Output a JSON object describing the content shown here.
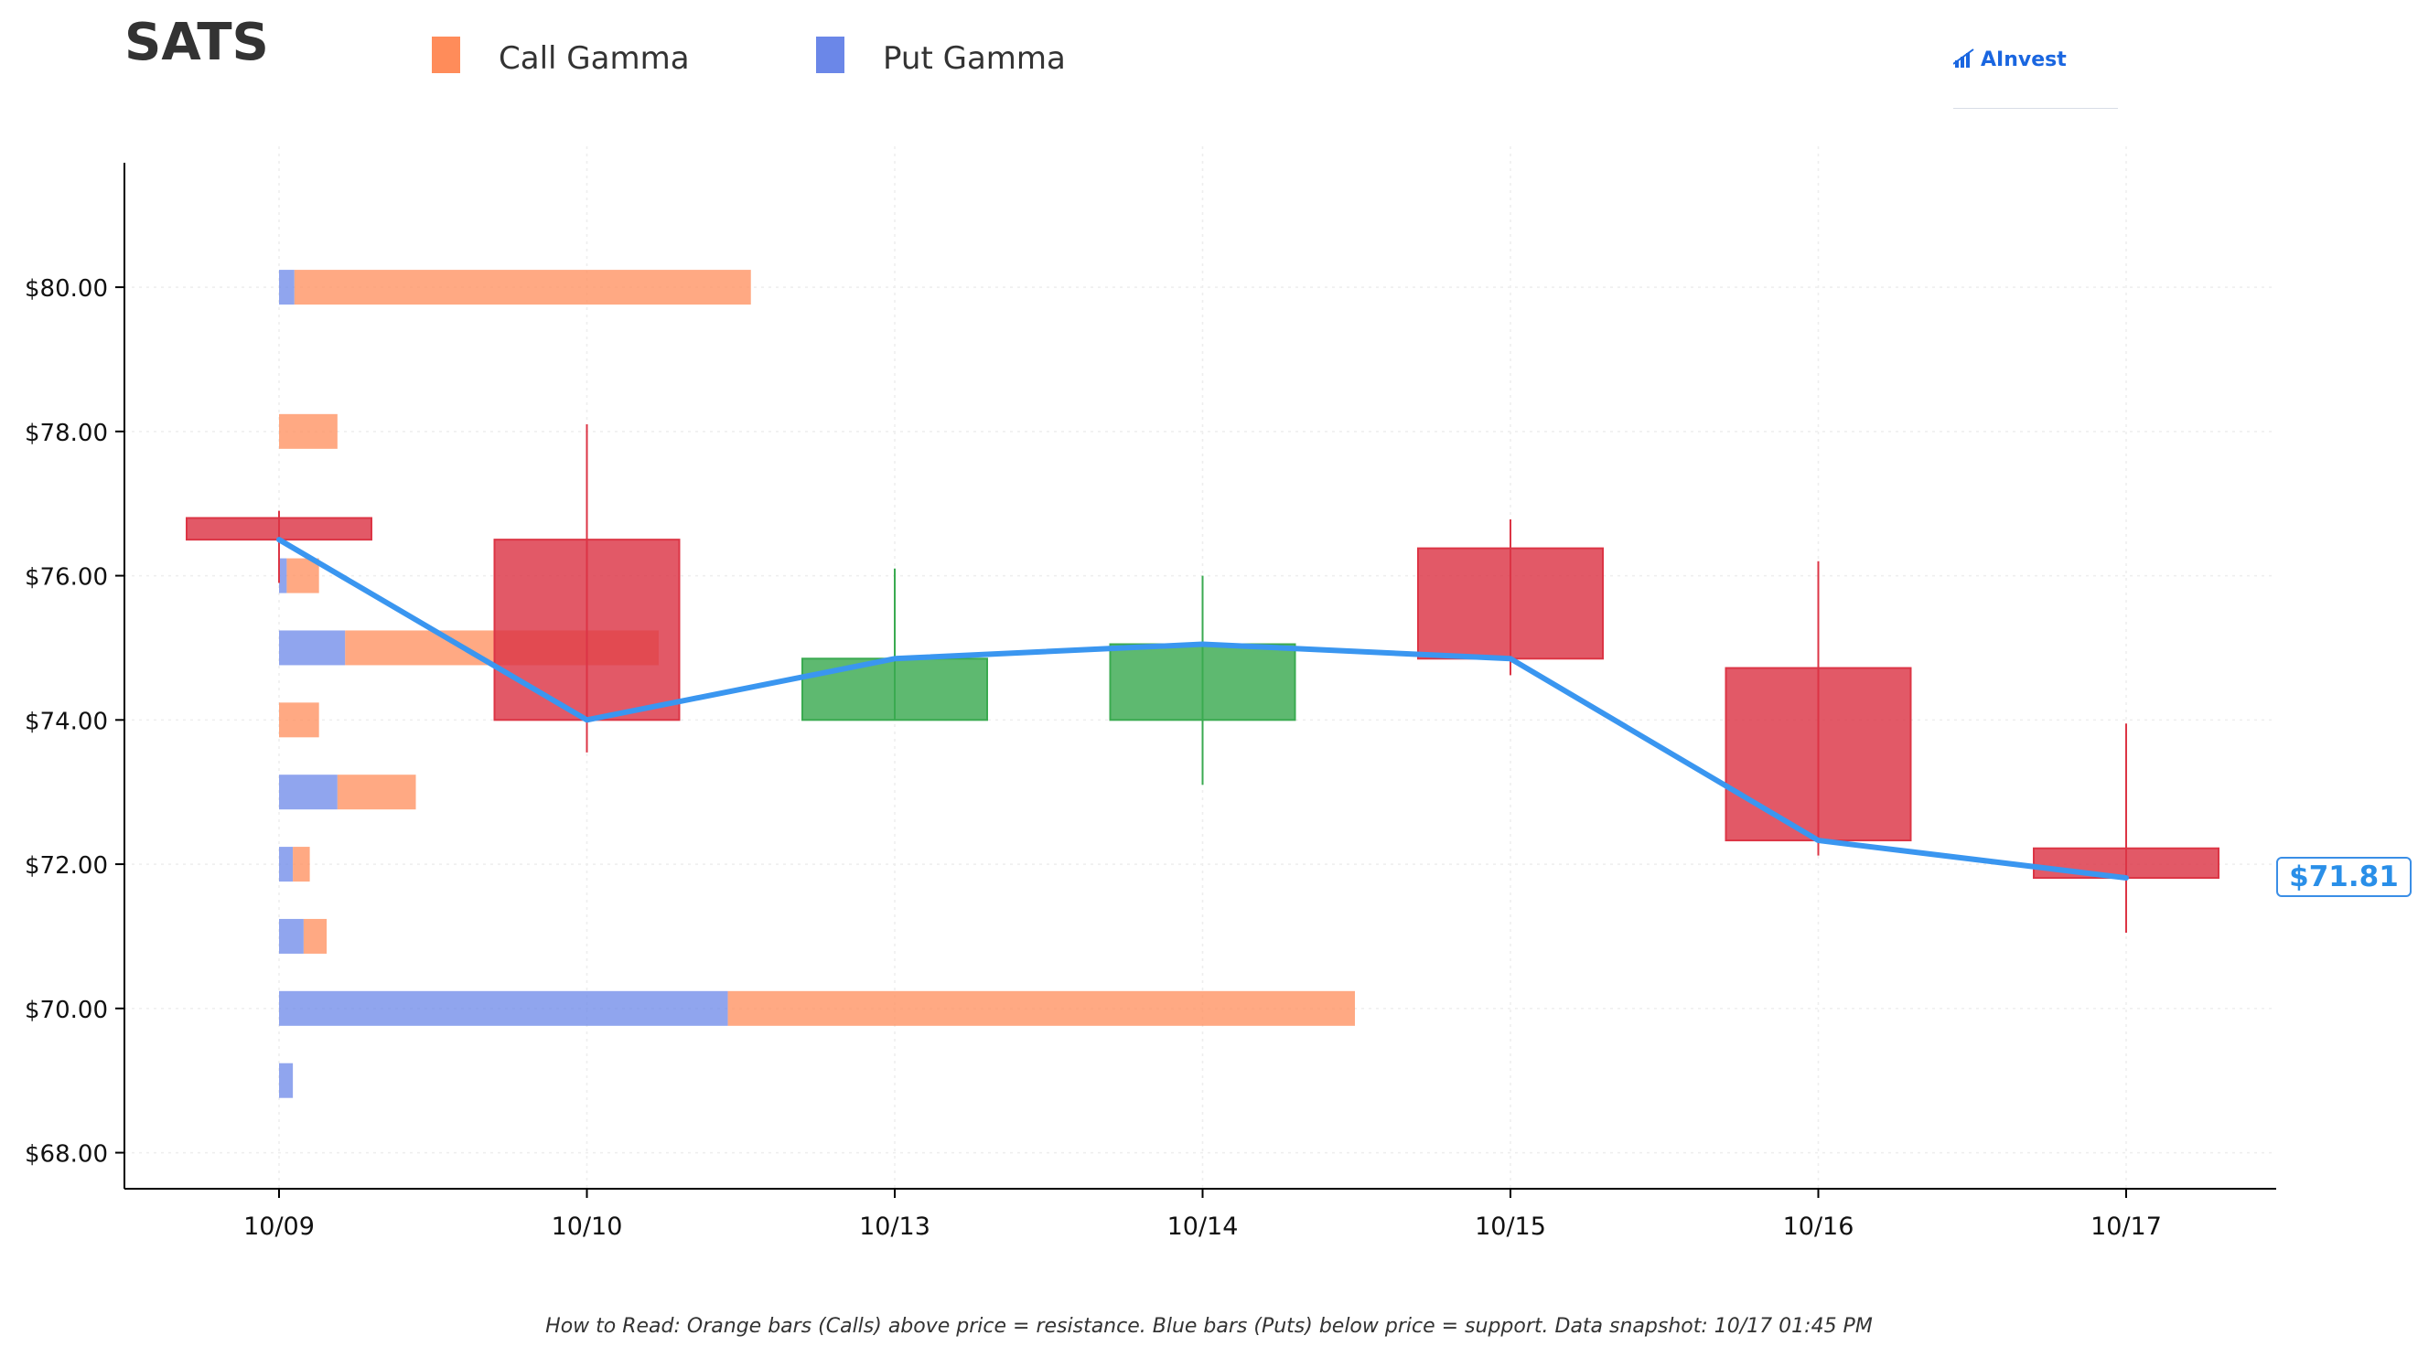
{
  "header": {
    "ticker": "SATS",
    "brand": "AInvest"
  },
  "legend": [
    {
      "label": "Call Gamma",
      "color": "#FF8C5A"
    },
    {
      "label": "Put Gamma",
      "color": "#6B87E8"
    }
  ],
  "footer": {
    "note": "How to Read: Orange bars (Calls) above price = resistance. Blue bars (Puts) below price = support. Data snapshot: 10/17 01:45 PM"
  },
  "chart_data": {
    "type": "candlestick",
    "title": "",
    "categories": [
      "10/09",
      "10/10",
      "10/13",
      "10/14",
      "10/15",
      "10/16",
      "10/17"
    ],
    "ylim": [
      67.5,
      81.7
    ],
    "yticks": [
      68,
      70,
      72,
      74,
      76,
      78,
      80
    ],
    "ytick_labels": [
      "$68.00",
      "$70.00",
      "$72.00",
      "$74.00",
      "$76.00",
      "$78.00",
      "$80.00"
    ],
    "grid": true,
    "legend_position": "top",
    "candles": [
      {
        "date": "10/09",
        "open": 76.8,
        "close": 76.5,
        "high": 76.9,
        "low": 75.9,
        "direction": "down"
      },
      {
        "date": "10/10",
        "open": 76.5,
        "close": 74.0,
        "high": 78.1,
        "low": 73.55,
        "direction": "down"
      },
      {
        "date": "10/13",
        "open": 74.0,
        "close": 74.85,
        "high": 76.1,
        "low": 74.0,
        "direction": "up"
      },
      {
        "date": "10/14",
        "open": 74.0,
        "close": 75.05,
        "high": 76.0,
        "low": 73.1,
        "direction": "up"
      },
      {
        "date": "10/15",
        "open": 76.38,
        "close": 74.85,
        "high": 76.78,
        "low": 74.62,
        "direction": "down"
      },
      {
        "date": "10/16",
        "open": 74.72,
        "close": 72.33,
        "high": 76.2,
        "low": 72.12,
        "direction": "down"
      },
      {
        "date": "10/17",
        "open": 72.22,
        "close": 71.81,
        "high": 73.95,
        "low": 71.05,
        "direction": "down"
      }
    ],
    "close_line": {
      "color": "#3A96F0",
      "values": [
        76.5,
        74.0,
        74.85,
        75.05,
        74.85,
        72.33,
        71.81
      ]
    },
    "gamma_bars": [
      {
        "strike": 80,
        "put": 0.1,
        "call": 2.97
      },
      {
        "strike": 78,
        "put": 0,
        "call": 0.38
      },
      {
        "strike": 76,
        "put": 0.05,
        "call": 0.21
      },
      {
        "strike": 75,
        "put": 0.43,
        "call": 2.04
      },
      {
        "strike": 74,
        "put": 0,
        "call": 0.26
      },
      {
        "strike": 73,
        "put": 0.38,
        "call": 0.51
      },
      {
        "strike": 72,
        "put": 0.09,
        "call": 0.11
      },
      {
        "strike": 71,
        "put": 0.16,
        "call": 0.15
      },
      {
        "strike": 70,
        "put": 2.92,
        "call": 4.08
      },
      {
        "strike": 69,
        "put": 0.09,
        "call": 0
      }
    ],
    "current_price": {
      "value": 71.81,
      "label": "$71.81"
    },
    "colors": {
      "up": "#3AAA50",
      "down": "#DC3545",
      "call": "#FF8C5A",
      "put": "#6B87E8",
      "axis": "#000000",
      "grid": "#EEEEEE"
    }
  }
}
